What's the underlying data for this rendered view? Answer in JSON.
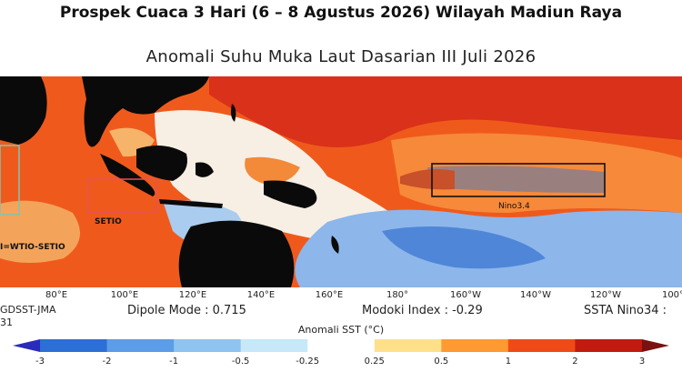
{
  "page_title": "Prospek Cuaca 3 Hari (6 – 8 Agustus 2026) Wilayah Madiun Raya",
  "map_title": "Anomali Suhu Muka Laut Dasarian III Juli 2026",
  "longitude_labels": [
    "80°E",
    "100°E",
    "120°E",
    "140°E",
    "160°E",
    "180°",
    "160°W",
    "140°W",
    "120°W",
    "100°"
  ],
  "regions": [
    {
      "name": "SETIO",
      "label": "SETIO",
      "color": "#e8505b"
    },
    {
      "name": "Nino3.4",
      "label": "Nino3.4",
      "color": "#111111"
    },
    {
      "name": "WTIO",
      "label": "I=WTIO-SETIO",
      "color": "#7fc4b0"
    }
  ],
  "source_text": "GDSST-JMA",
  "source_text_2": "31",
  "dipole_mode": "Dipole Mode : 0.715",
  "modoki_index": "Modoki Index : -0.29",
  "ssta_nino34": "SSTA Nino34 :",
  "colorbar": {
    "title": "Anomali SST (°C)",
    "ticks": [
      "-3",
      "-2",
      "-1",
      "-0.5",
      "-0.25",
      "0.25",
      "0.5",
      "1",
      "2",
      "3"
    ],
    "colors": [
      "#2a2bb8",
      "#2c6fd6",
      "#5b9de8",
      "#8fc3f0",
      "#c6e8f8",
      "#ffffff",
      "#ffe08a",
      "#ff9a33",
      "#f04a16",
      "#c21a0e",
      "#7a1010"
    ]
  },
  "legend_colors": {
    "land": "#0a0a0a",
    "warm": "#f05a1c",
    "hot": "#d6281a",
    "cool": "#7aa8e6",
    "neutral": "#f3efe8",
    "nino_core": "#9a7f7f"
  }
}
